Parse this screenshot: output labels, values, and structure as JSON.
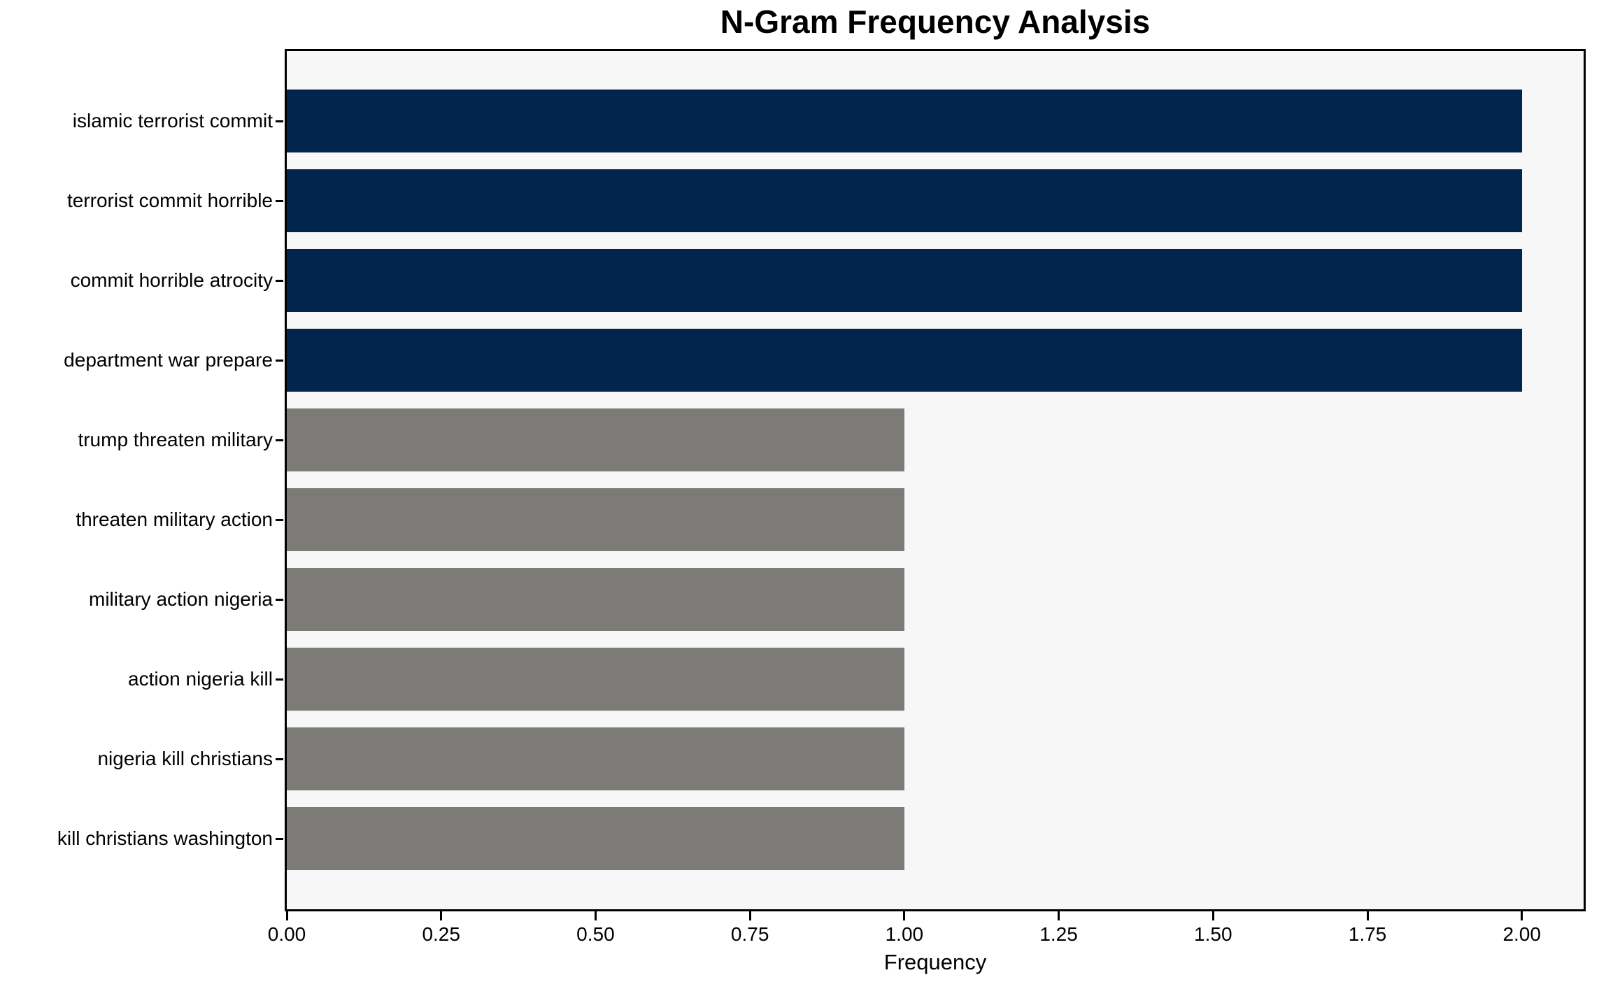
{
  "chart_data": {
    "type": "bar",
    "orientation": "horizontal",
    "title": "N-Gram Frequency Analysis",
    "xlabel": "Frequency",
    "ylabel": "",
    "categories": [
      "islamic terrorist commit",
      "terrorist commit horrible",
      "commit horrible atrocity",
      "department war prepare",
      "trump threaten military",
      "threaten military action",
      "military action nigeria",
      "action nigeria kill",
      "nigeria kill christians",
      "kill christians washington"
    ],
    "values": [
      2,
      2,
      2,
      2,
      1,
      1,
      1,
      1,
      1,
      1
    ],
    "bar_colors": [
      "#02254e",
      "#02254e",
      "#02254e",
      "#02254e",
      "#7c7b78",
      "#7c7b78",
      "#7c7b78",
      "#7c7b78",
      "#7c7b78",
      "#7c7b78"
    ],
    "xlim": [
      0,
      2.1
    ],
    "xticks": [
      0.0,
      0.25,
      0.5,
      0.75,
      1.0,
      1.25,
      1.5,
      1.75,
      2.0
    ],
    "xtick_labels": [
      "0.00",
      "0.25",
      "0.50",
      "0.75",
      "1.00",
      "1.25",
      "1.50",
      "1.75",
      "2.00"
    ],
    "grid": false,
    "legend": null,
    "colors": {
      "plot_background": "#f7f7f8",
      "figure_background": "#ffffff",
      "spine": "#000000",
      "navy_bar": "#02254e",
      "gray_bar": "#7c7b78",
      "text": "#000000"
    }
  }
}
